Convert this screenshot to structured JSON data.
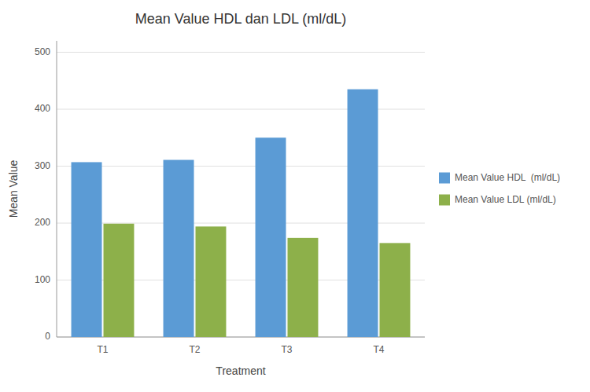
{
  "chart_data": {
    "type": "bar",
    "title": "Mean Value HDL dan LDL (ml/dL)",
    "x_label": "Treatment",
    "y_label": "Mean Value",
    "categories": [
      "T1",
      "T2",
      "T3",
      "T4"
    ],
    "series": [
      {
        "name": "Mean Value HDL  (ml/dL)",
        "color": "#5B9BD5",
        "values": [
          307,
          311,
          350,
          435
        ]
      },
      {
        "name": "Mean Value LDL (ml/dL)",
        "color": "#8DB04A",
        "values": [
          199,
          194,
          174,
          165
        ]
      }
    ],
    "ylim": [
      0,
      520
    ],
    "yticks": [
      0,
      100,
      200,
      300,
      400,
      500
    ],
    "grid": true,
    "legend": "right"
  }
}
